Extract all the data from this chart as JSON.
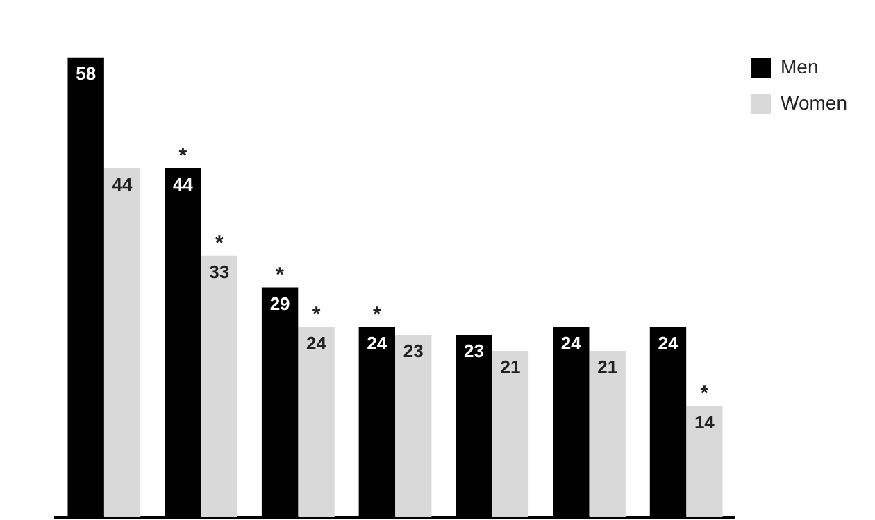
{
  "chart_data": {
    "type": "bar",
    "categories": [
      null,
      null,
      null,
      null,
      null,
      null,
      null
    ],
    "series": [
      {
        "name": "Men",
        "color": "#000000",
        "values": [
          58,
          44,
          29,
          24,
          23,
          24,
          24
        ]
      },
      {
        "name": "Women",
        "color": "#d9d9d9",
        "values": [
          44,
          33,
          24,
          23,
          21,
          21,
          14
        ]
      }
    ],
    "data_labels": true,
    "legend": "top right",
    "grid": false,
    "annotations": [
      {
        "text": "*",
        "y": 44
      },
      {
        "text": "*",
        "y": 29
      },
      {
        "text": "*",
        "y": 24
      },
      {
        "text": "*",
        "y": 33
      },
      {
        "text": "*",
        "y": 24
      },
      {
        "text": "*",
        "y": 14
      }
    ]
  }
}
